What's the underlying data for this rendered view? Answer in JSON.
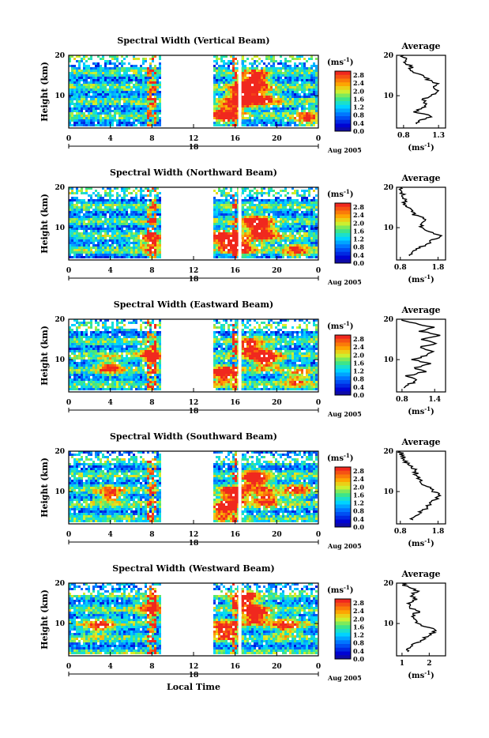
{
  "chart_data": [
    {
      "type": "heatmap",
      "title": "Spectral Width (Vertical Beam)",
      "ylabel": "Height (km)",
      "ylim": [
        2,
        20
      ],
      "yticks": [
        "20",
        "10"
      ],
      "xlim": [
        0,
        24
      ],
      "xticks": [
        "0",
        "4",
        "8",
        "12",
        "16",
        "20",
        "0"
      ],
      "date_marker": "18",
      "date_label": "Aug 2005",
      "no_data_interval": [
        9,
        14
      ],
      "colorbar": {
        "unit": "(ms",
        "unit_exp": "-1",
        "unit_close": ")",
        "ticks": [
          "2.8",
          "2.4",
          "2.0",
          "1.6",
          "1.2",
          "0.8",
          "0.4",
          "0.0"
        ],
        "range": [
          0,
          3.0
        ]
      },
      "hotspots": [
        [
          17,
          11,
          2.8
        ],
        [
          18,
          14,
          2.6
        ],
        [
          15,
          5,
          2.4
        ],
        [
          16.5,
          8,
          2.2
        ],
        [
          19,
          9,
          1.8
        ],
        [
          23,
          4,
          1.6
        ]
      ],
      "average_profile": {
        "title": "Average",
        "xlabel": "(ms",
        "xlabel_exp": "-1",
        "xlabel_close": ")",
        "xticks": [
          "0.8",
          "1.3"
        ],
        "xlim": [
          0.7,
          1.4
        ],
        "heights": [
          3,
          4,
          5,
          6,
          7,
          8,
          9,
          10,
          11,
          12,
          13,
          14,
          15,
          16,
          17,
          18,
          19,
          20
        ],
        "values": [
          0.98,
          1.05,
          1.2,
          0.95,
          1.1,
          1.15,
          1.05,
          1.22,
          1.3,
          1.2,
          1.28,
          1.15,
          1.05,
          0.95,
          0.9,
          0.85,
          0.82,
          0.8
        ]
      }
    },
    {
      "type": "heatmap",
      "title": "Spectral Width (Northward Beam)",
      "ylabel": "Height (km)",
      "ylim": [
        2,
        20
      ],
      "yticks": [
        "20",
        "10"
      ],
      "xlim": [
        0,
        24
      ],
      "xticks": [
        "0",
        "4",
        "8",
        "12",
        "16",
        "20",
        "0"
      ],
      "date_marker": "18",
      "date_label": "Aug 2005",
      "no_data_interval": [
        9,
        14
      ],
      "colorbar": {
        "unit": "(ms",
        "unit_exp": "-1",
        "unit_close": ")",
        "ticks": [
          "2.8",
          "2.4",
          "2.0",
          "1.6",
          "1.2",
          "0.8",
          "0.4",
          "0.0"
        ],
        "range": [
          0,
          3.0
        ]
      },
      "hotspots": [
        [
          18,
          11,
          2.8
        ],
        [
          15,
          7,
          2.6
        ],
        [
          16.5,
          5,
          2.4
        ],
        [
          19,
          8,
          2.0
        ],
        [
          8,
          6,
          1.8
        ],
        [
          22,
          4,
          1.6
        ]
      ],
      "average_profile": {
        "title": "Average",
        "xlabel": "(ms",
        "xlabel_exp": "-1",
        "xlabel_close": ")",
        "xticks": [
          "0.8",
          "1.8"
        ],
        "xlim": [
          0.7,
          2.0
        ],
        "heights": [
          3,
          4,
          5,
          6,
          7,
          8,
          9,
          10,
          11,
          12,
          13,
          14,
          15,
          16,
          17,
          18,
          19,
          20
        ],
        "values": [
          1.0,
          1.1,
          1.3,
          1.5,
          1.7,
          1.9,
          1.6,
          1.4,
          1.3,
          1.5,
          1.2,
          1.1,
          1.0,
          0.95,
          0.9,
          0.85,
          0.82,
          0.8
        ]
      }
    },
    {
      "type": "heatmap",
      "title": "Spectral Width (Eastward Beam)",
      "ylabel": "Height (km)",
      "ylim": [
        2,
        20
      ],
      "yticks": [
        "20",
        "10"
      ],
      "xlim": [
        0,
        24
      ],
      "xticks": [
        "0",
        "4",
        "8",
        "12",
        "16",
        "20",
        "0"
      ],
      "date_marker": "18",
      "date_label": "Aug 2005",
      "no_data_interval": [
        9,
        14
      ],
      "colorbar": {
        "unit": "(ms",
        "unit_exp": "-1",
        "unit_close": ")",
        "ticks": [
          "2.8",
          "2.4",
          "2.0",
          "1.6",
          "1.2",
          "0.8",
          "0.4",
          "0.0"
        ],
        "range": [
          0,
          3.0
        ]
      },
      "hotspots": [
        [
          19,
          10,
          2.8
        ],
        [
          15,
          6,
          2.6
        ],
        [
          17.5,
          13,
          2.2
        ],
        [
          8,
          11,
          2.0
        ],
        [
          4,
          8,
          1.8
        ],
        [
          22,
          5,
          1.6
        ]
      ],
      "average_profile": {
        "title": "Average",
        "xlabel": "(ms",
        "xlabel_exp": "-1",
        "xlabel_close": ")",
        "xticks": [
          "0.8",
          "1.4"
        ],
        "xlim": [
          0.7,
          1.6
        ],
        "heights": [
          3,
          4,
          5,
          6,
          7,
          8,
          9,
          10,
          11,
          12,
          13,
          14,
          15,
          16,
          17,
          18,
          19,
          20
        ],
        "values": [
          0.85,
          0.95,
          1.1,
          0.9,
          1.2,
          1.05,
          1.35,
          1.0,
          1.25,
          1.4,
          1.1,
          1.45,
          1.2,
          1.5,
          1.15,
          1.35,
          1.0,
          0.8
        ]
      }
    },
    {
      "type": "heatmap",
      "title": "Spectral Width (Southward Beam)",
      "ylabel": "Height (km)",
      "ylim": [
        2,
        20
      ],
      "yticks": [
        "20",
        "10"
      ],
      "xlim": [
        0,
        24
      ],
      "xticks": [
        "0",
        "4",
        "8",
        "12",
        "16",
        "20",
        "0"
      ],
      "date_marker": "18",
      "date_label": "Aug 2005",
      "no_data_interval": [
        9,
        14
      ],
      "colorbar": {
        "unit": "(ms",
        "unit_exp": "-1",
        "unit_close": ")",
        "ticks": [
          "2.8",
          "2.4",
          "2.0",
          "1.6",
          "1.2",
          "0.8",
          "0.4",
          "0.0"
        ],
        "range": [
          0,
          3.0
        ]
      },
      "hotspots": [
        [
          18,
          13,
          2.8
        ],
        [
          16,
          9,
          2.6
        ],
        [
          15,
          5,
          2.4
        ],
        [
          19,
          8,
          2.2
        ],
        [
          4,
          9,
          1.9
        ],
        [
          22,
          10,
          1.6
        ]
      ],
      "average_profile": {
        "title": "Average",
        "xlabel": "(ms",
        "xlabel_exp": "-1",
        "xlabel_close": ")",
        "xticks": [
          "0.8",
          "1.8"
        ],
        "xlim": [
          0.7,
          2.0
        ],
        "heights": [
          3,
          4,
          5,
          6,
          7,
          8,
          9,
          10,
          11,
          12,
          13,
          14,
          15,
          16,
          17,
          18,
          19,
          20
        ],
        "values": [
          1.1,
          1.2,
          1.35,
          1.5,
          1.6,
          1.75,
          1.85,
          1.7,
          1.55,
          1.4,
          1.3,
          1.25,
          1.2,
          1.1,
          1.0,
          0.9,
          0.85,
          0.8
        ]
      }
    },
    {
      "type": "heatmap",
      "title": "Spectral Width (Westward Beam)",
      "ylabel": "Height (km)",
      "ylim": [
        2,
        20
      ],
      "yticks": [
        "20",
        "10"
      ],
      "xlim": [
        0,
        24
      ],
      "xticks": [
        "0",
        "4",
        "8",
        "12",
        "16",
        "20",
        "0"
      ],
      "date_marker": "18",
      "date_label": "Aug 2005",
      "xlabel": "Local Time",
      "no_data_interval": [
        9,
        14
      ],
      "colorbar": {
        "unit": "(ms",
        "unit_exp": "-1",
        "unit_close": ")",
        "ticks": [
          "2.8",
          "2.4",
          "2.0",
          "1.6",
          "1.2",
          "0.8",
          "0.4",
          "0.0"
        ],
        "range": [
          0,
          3.0
        ]
      },
      "hotspots": [
        [
          18,
          12,
          2.8
        ],
        [
          15,
          8,
          2.6
        ],
        [
          17,
          16,
          2.4
        ],
        [
          8,
          14,
          2.0
        ],
        [
          21,
          9,
          1.8
        ],
        [
          3,
          9,
          1.7
        ]
      ],
      "average_profile": {
        "title": "Average",
        "xlabel": "(ms",
        "xlabel_exp": "-1",
        "xlabel_close": ")",
        "xticks": [
          "1",
          "2"
        ],
        "xlim": [
          0.8,
          2.6
        ],
        "heights": [
          3,
          4,
          5,
          6,
          7,
          8,
          9,
          10,
          11,
          12,
          13,
          14,
          15,
          16,
          17,
          18,
          19,
          20
        ],
        "values": [
          1.1,
          1.3,
          1.5,
          1.7,
          2.0,
          2.2,
          2.0,
          1.6,
          1.5,
          1.4,
          1.6,
          1.3,
          1.2,
          1.5,
          1.3,
          1.6,
          1.2,
          1.0
        ]
      }
    }
  ]
}
